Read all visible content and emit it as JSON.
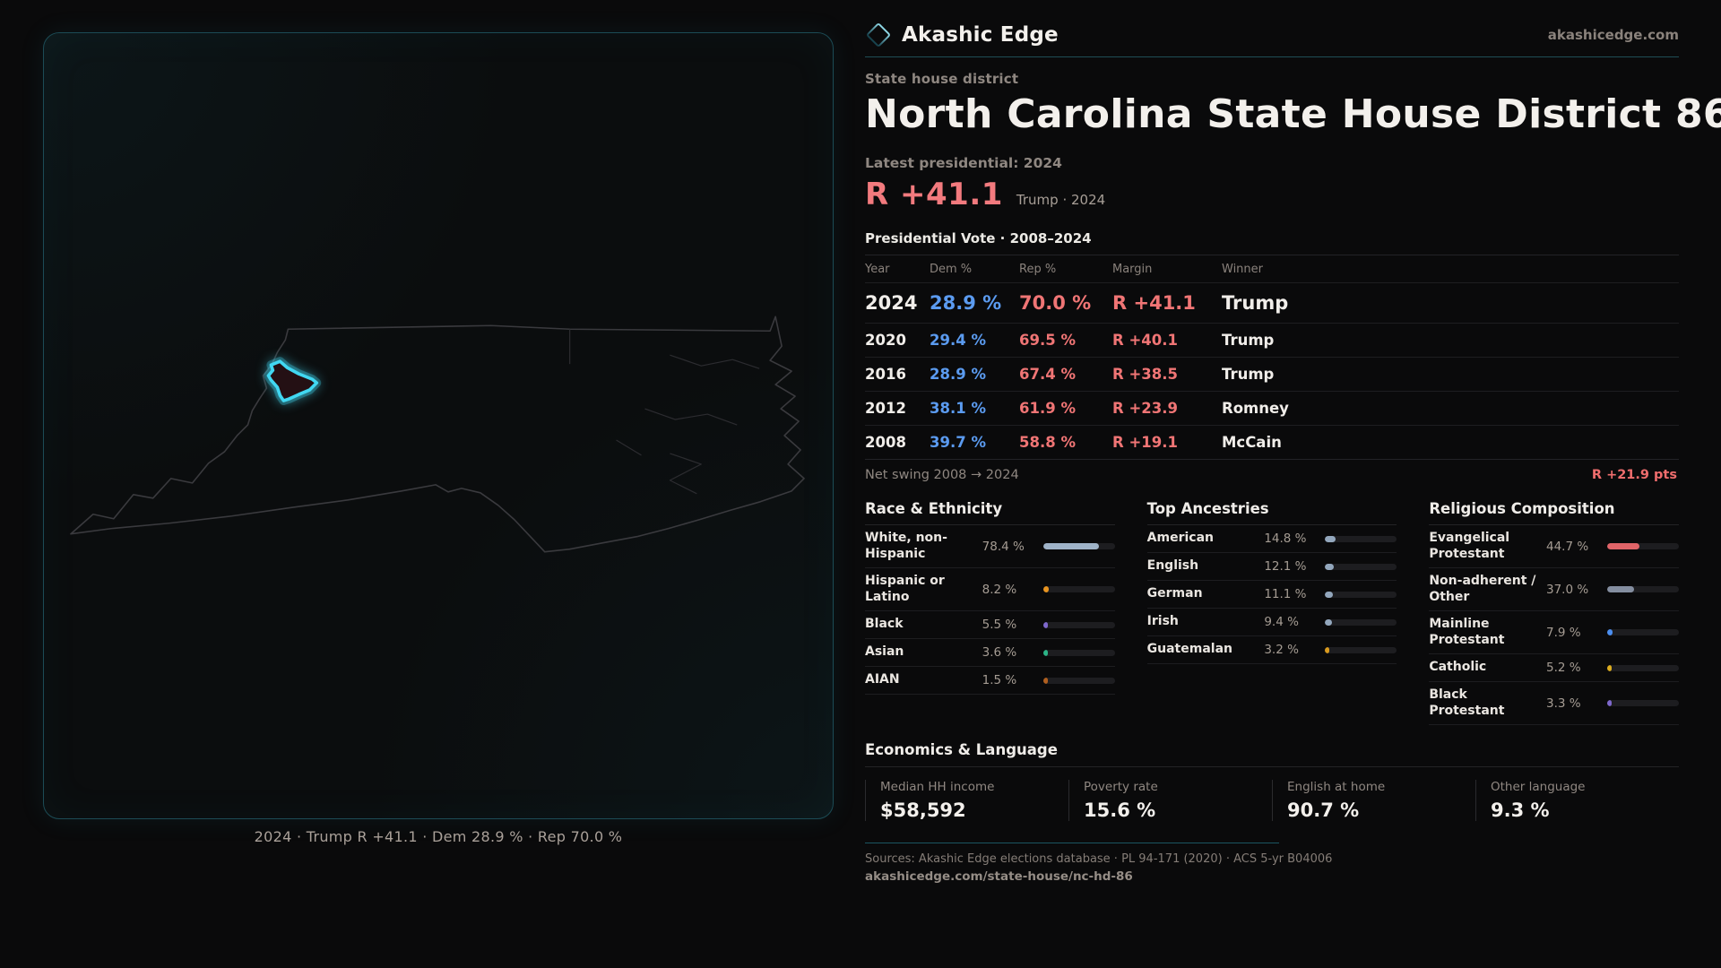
{
  "brand": {
    "name": "Akashic Edge",
    "site": "akashicedge.com"
  },
  "header": {
    "kicker": "State house district",
    "title": "North Carolina State House District 86",
    "latest_label": "Latest presidential: 2024",
    "margin_big": "R +41.1",
    "margin_sub": "Trump · 2024"
  },
  "map": {
    "caption": "2024 · Trump R +41.1 · Dem 28.9 % · Rep 70.0 %"
  },
  "colors": {
    "dem_blue": "#5b9bf0",
    "rep_red": "#f07575",
    "district_cyan": "#41d8f2"
  },
  "vote_table": {
    "title": "Presidential Vote · 2008–2024",
    "columns": [
      "Year",
      "Dem %",
      "Rep %",
      "Margin",
      "Winner"
    ],
    "rows": [
      {
        "year": "2024",
        "dem": "28.9 %",
        "rep": "70.0 %",
        "margin": "R +41.1",
        "winner": "Trump"
      },
      {
        "year": "2020",
        "dem": "29.4 %",
        "rep": "69.5 %",
        "margin": "R +40.1",
        "winner": "Trump"
      },
      {
        "year": "2016",
        "dem": "28.9 %",
        "rep": "67.4 %",
        "margin": "R +38.5",
        "winner": "Trump"
      },
      {
        "year": "2012",
        "dem": "38.1 %",
        "rep": "61.9 %",
        "margin": "R +23.9",
        "winner": "Romney"
      },
      {
        "year": "2008",
        "dem": "39.7 %",
        "rep": "58.8 %",
        "margin": "R +19.1",
        "winner": "McCain"
      }
    ],
    "swing_label": "Net swing 2008 → 2024",
    "swing_value": "R +21.9 pts"
  },
  "race": {
    "title": "Race & Ethnicity",
    "rows": [
      {
        "label": "White, non-Hispanic",
        "value": "78.4 %",
        "pct": 78.4,
        "color": "#9fb3c8"
      },
      {
        "label": "Hispanic or Latino",
        "value": "8.2 %",
        "pct": 8.2,
        "color": "#e89420"
      },
      {
        "label": "Black",
        "value": "5.5 %",
        "pct": 5.5,
        "color": "#7e68cc"
      },
      {
        "label": "Asian",
        "value": "3.6 %",
        "pct": 3.6,
        "color": "#2cb487"
      },
      {
        "label": "AIAN",
        "value": "1.5 %",
        "pct": 1.5,
        "color": "#b05f1f"
      }
    ]
  },
  "ancestries": {
    "title": "Top Ancestries",
    "rows": [
      {
        "label": "American",
        "value": "14.8 %",
        "pct": 14.8,
        "color": "#93a7bd"
      },
      {
        "label": "English",
        "value": "12.1 %",
        "pct": 12.1,
        "color": "#93a7bd"
      },
      {
        "label": "German",
        "value": "11.1 %",
        "pct": 11.1,
        "color": "#93a7bd"
      },
      {
        "label": "Irish",
        "value": "9.4 %",
        "pct": 9.4,
        "color": "#93a7bd"
      },
      {
        "label": "Guatemalan",
        "value": "3.2 %",
        "pct": 3.2,
        "color": "#d99a1e"
      }
    ]
  },
  "religion": {
    "title": "Religious Composition",
    "rows": [
      {
        "label": "Evangelical Protestant",
        "value": "44.7 %",
        "pct": 44.7,
        "color": "#e06468"
      },
      {
        "label": "Non-adherent / Other",
        "value": "37.0 %",
        "pct": 37.0,
        "color": "#848ea0"
      },
      {
        "label": "Mainline Protestant",
        "value": "7.9 %",
        "pct": 7.9,
        "color": "#4b8ef0"
      },
      {
        "label": "Catholic",
        "value": "5.2 %",
        "pct": 5.2,
        "color": "#ddad1f"
      },
      {
        "label": "Black Protestant",
        "value": "3.3 %",
        "pct": 3.3,
        "color": "#7e68cc"
      }
    ]
  },
  "economics": {
    "title": "Economics & Language",
    "stats": [
      {
        "label": "Median HH income",
        "value": "$58,592"
      },
      {
        "label": "Poverty rate",
        "value": "15.6 %"
      },
      {
        "label": "English at home",
        "value": "90.7 %"
      },
      {
        "label": "Other language",
        "value": "9.3 %"
      }
    ]
  },
  "footer": {
    "sources": "Sources: Akashic Edge elections database · PL 94-171 (2020) · ACS 5-yr B04006",
    "url": "akashicedge.com/state-house/nc-hd-86"
  }
}
